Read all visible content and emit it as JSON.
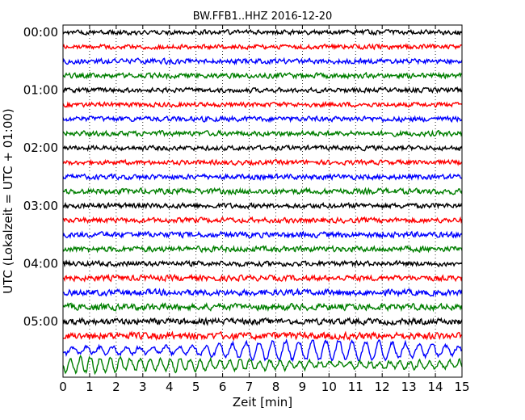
{
  "chart_data": {
    "type": "line",
    "title": "BW.FFB1..HHZ 2016-12-20",
    "xlabel": "Zeit  [min]",
    "ylabel": "UTC (Lokalzeit = UTC + 01:00)",
    "xlim": [
      0,
      15
    ],
    "x_ticks": [
      "0",
      "1",
      "2",
      "3",
      "4",
      "5",
      "6",
      "7",
      "8",
      "9",
      "10",
      "11",
      "12",
      "13",
      "14",
      "15"
    ],
    "y_tick_labels": [
      "00:00",
      "01:00",
      "02:00",
      "03:00",
      "04:00",
      "05:00"
    ],
    "y_tick_rows": [
      0,
      4,
      8,
      12,
      16,
      20
    ],
    "row_interval_minutes": 15,
    "grid": "vertical dotted lines at each minute",
    "trace_colors": [
      "#000000",
      "#ff0000",
      "#0000ff",
      "#007f00"
    ],
    "rows": [
      {
        "start": "00:00",
        "amplitude": 0.2
      },
      {
        "start": "00:15",
        "amplitude": 0.2
      },
      {
        "start": "00:30",
        "amplitude": 0.22
      },
      {
        "start": "00:45",
        "amplitude": 0.22
      },
      {
        "start": "01:00",
        "amplitude": 0.2
      },
      {
        "start": "01:15",
        "amplitude": 0.2
      },
      {
        "start": "01:30",
        "amplitude": 0.22
      },
      {
        "start": "01:45",
        "amplitude": 0.22
      },
      {
        "start": "02:00",
        "amplitude": 0.2
      },
      {
        "start": "02:15",
        "amplitude": 0.2
      },
      {
        "start": "02:30",
        "amplitude": 0.22
      },
      {
        "start": "02:45",
        "amplitude": 0.24
      },
      {
        "start": "03:00",
        "amplitude": 0.22
      },
      {
        "start": "03:15",
        "amplitude": 0.22
      },
      {
        "start": "03:30",
        "amplitude": 0.24
      },
      {
        "start": "03:45",
        "amplitude": 0.24
      },
      {
        "start": "04:00",
        "amplitude": 0.22
      },
      {
        "start": "04:15",
        "amplitude": 0.24
      },
      {
        "start": "04:30",
        "amplitude": 0.26
      },
      {
        "start": "04:45",
        "amplitude": 0.28
      },
      {
        "start": "05:00",
        "amplitude": 0.26
      },
      {
        "start": "05:15",
        "amplitude": 0.3
      },
      {
        "start": "05:30",
        "amplitude": 0.75
      },
      {
        "start": "05:45",
        "amplitude": 0.9
      }
    ]
  }
}
